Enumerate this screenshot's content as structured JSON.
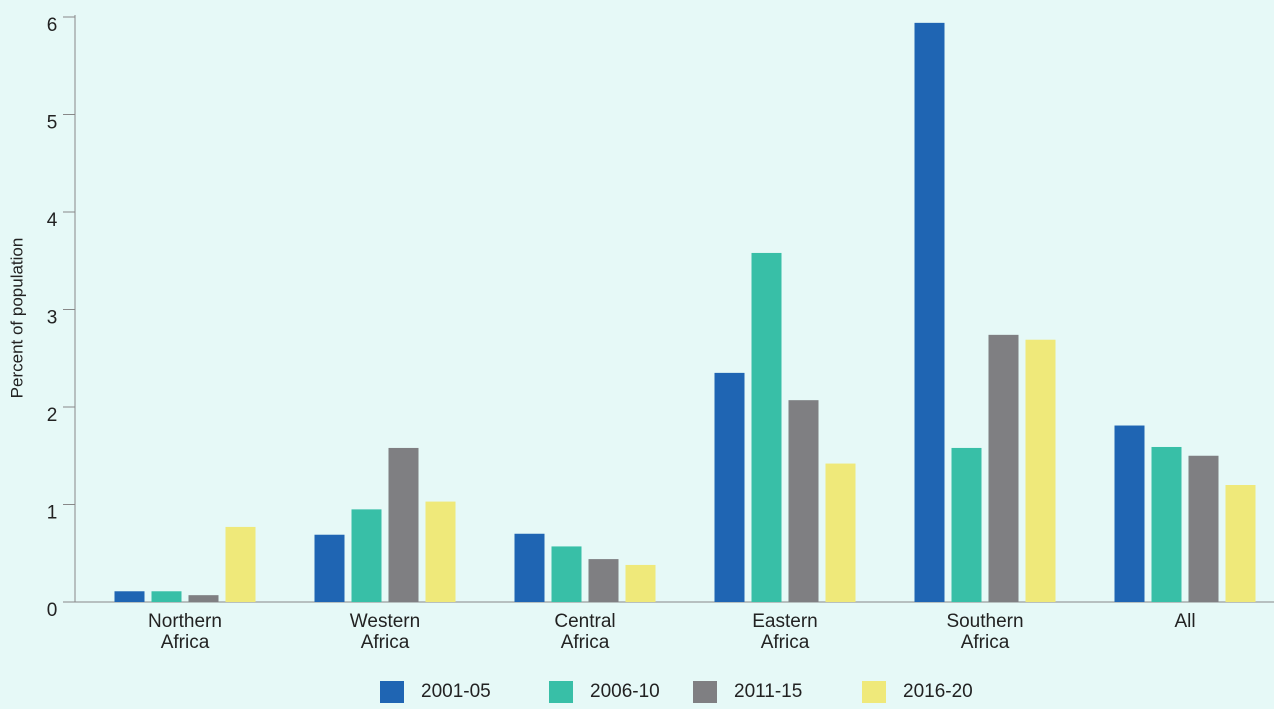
{
  "chart_data": {
    "type": "bar",
    "y_label": "Percent of population",
    "categories": [
      "Northern Africa",
      "Western Africa",
      "Central Africa",
      "Eastern Africa",
      "Southern Africa",
      "All"
    ],
    "series": [
      {
        "name": "2001-05",
        "color": "#1f65b3",
        "values": [
          0.11,
          0.69,
          0.7,
          2.35,
          5.94,
          1.81
        ]
      },
      {
        "name": "2006-10",
        "color": "#38bfa7",
        "values": [
          0.11,
          0.95,
          0.57,
          3.58,
          1.58,
          1.59
        ]
      },
      {
        "name": "2011-15",
        "color": "#7f7f82",
        "values": [
          0.07,
          1.58,
          0.44,
          2.07,
          2.74,
          1.5
        ]
      },
      {
        "name": "2016-20",
        "color": "#efe97a",
        "values": [
          0.77,
          1.03,
          0.38,
          1.42,
          2.69,
          1.2
        ]
      }
    ],
    "ylim": [
      0,
      6
    ],
    "yticks": [
      0,
      1,
      2,
      3,
      4,
      5,
      6
    ],
    "legend": "bottom"
  }
}
